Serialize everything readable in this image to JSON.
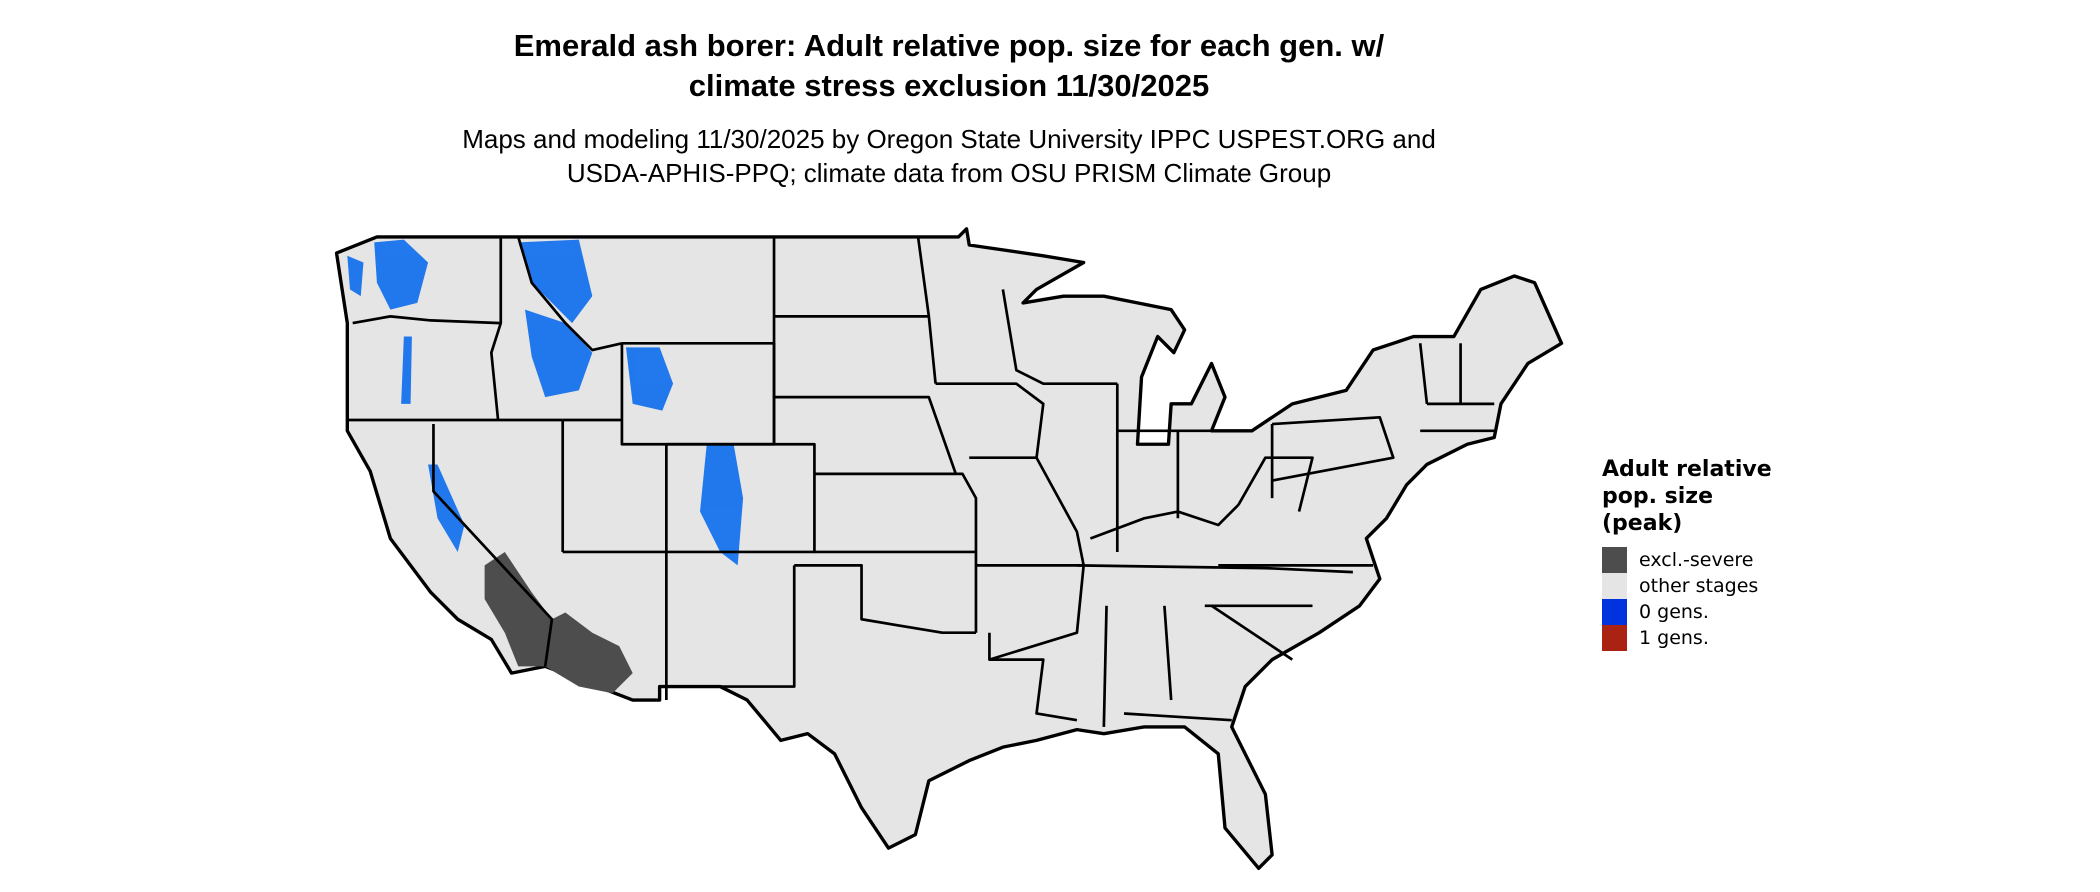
{
  "title_line1": "Emerald ash borer: Adult relative pop. size for each gen. w/",
  "title_line2": "climate stress exclusion 11/30/2025",
  "subtitle_line1": "Maps and modeling 11/30/2025 by Oregon State University IPPC USPEST.ORG and",
  "subtitle_line2": "USDA-APHIS-PPQ; climate data from OSU PRISM Climate Group",
  "map": {
    "region": "Contiguous United States",
    "base_color": "#e5e5e5",
    "border_color": "#000000"
  },
  "legend": {
    "title_lines": [
      "Adult relative",
      "pop. size",
      "(peak)"
    ],
    "items": [
      {
        "label": "excl.-severe",
        "color": "#4d4d4d"
      },
      {
        "label": "other stages",
        "color": "#e5e5e5"
      },
      {
        "label": "0 gens.",
        "color": "#0033dd"
      },
      {
        "label": "1 gens.",
        "color": "#aa2211"
      }
    ]
  }
}
